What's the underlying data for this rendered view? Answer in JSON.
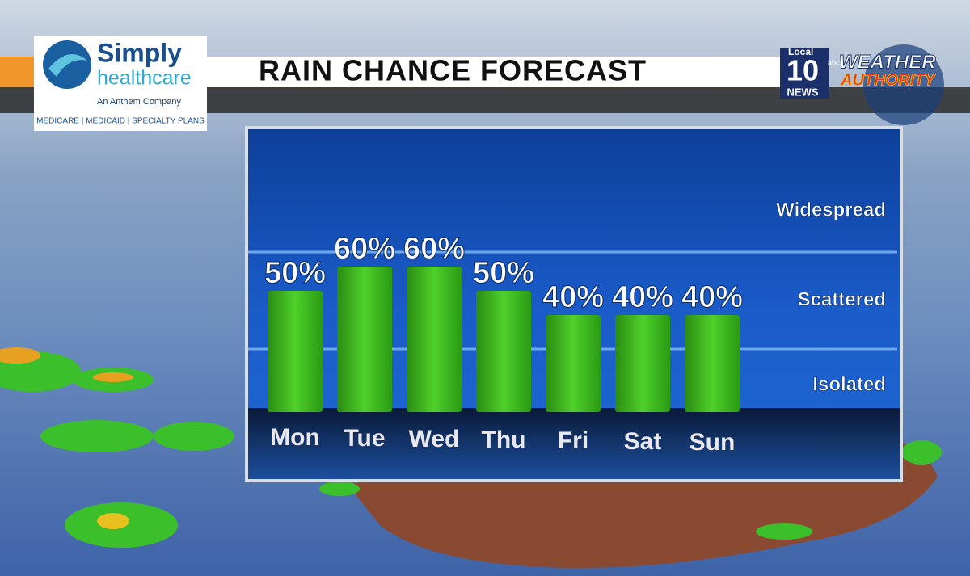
{
  "chart_data": {
    "type": "bar",
    "title": "RAIN CHANCE FORECAST",
    "categories": [
      "Mon",
      "Tue",
      "Wed",
      "Thu",
      "Fri",
      "Sat",
      "Sun"
    ],
    "values": [
      50,
      60,
      60,
      50,
      40,
      40,
      40
    ],
    "value_labels": [
      "50%",
      "60%",
      "60%",
      "50%",
      "40%",
      "40%",
      "40%"
    ],
    "color": "#3fbf1f",
    "ylim": [
      0,
      100
    ],
    "bands": [
      {
        "label": "Isolated",
        "from": 0,
        "to": 26
      },
      {
        "label": "Scattered",
        "from": 26,
        "to": 66
      },
      {
        "label": "Widespread",
        "from": 66,
        "to": 100
      }
    ]
  },
  "sponsor": {
    "name_1": "Simply",
    "name_2": "healthcare",
    "tagline": "An Anthem Company",
    "plans": "MEDICARE | MEDICAID | SPECIALTY PLANS"
  },
  "station": {
    "local": "Local",
    "number": "10",
    "network": "abc",
    "news": "NEWS",
    "brand_1": "WEATHER",
    "brand_2": "AUTHORITY"
  }
}
